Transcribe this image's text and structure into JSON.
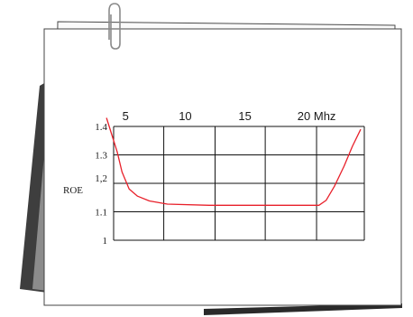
{
  "chart_data": {
    "type": "line",
    "title": "",
    "ylabel": "ROE",
    "x_unit": "Mhz",
    "xlim": [
      4,
      25
    ],
    "ylim": [
      1.0,
      1.4
    ],
    "x_ticks": [
      {
        "value": 5,
        "label": "5"
      },
      {
        "value": 10,
        "label": "10"
      },
      {
        "value": 15,
        "label": "15"
      },
      {
        "value": 20,
        "label": "20 Mhz"
      }
    ],
    "x_gridlines": [
      4,
      8.2,
      12.5,
      16.7,
      21,
      25
    ],
    "y_ticks": [
      {
        "value": 1.4,
        "label": "1.4"
      },
      {
        "value": 1.3,
        "label": "1.3"
      },
      {
        "value": 1.2,
        "label": "1,2"
      },
      {
        "value": 1.1,
        "label": "1.1"
      },
      {
        "value": 1.0,
        "label": "1"
      }
    ],
    "grid": true,
    "series": [
      {
        "color": "#e8202a",
        "x": [
          3.4,
          4.3,
          4.7,
          5.3,
          6.0,
          7.0,
          8.5,
          12.0,
          16.0,
          20.0,
          21.2,
          21.8,
          22.5,
          23.3,
          24.0,
          24.7
        ],
        "y": [
          1.43,
          1.31,
          1.24,
          1.18,
          1.155,
          1.138,
          1.127,
          1.123,
          1.123,
          1.123,
          1.123,
          1.14,
          1.19,
          1.26,
          1.33,
          1.39
        ]
      }
    ]
  }
}
